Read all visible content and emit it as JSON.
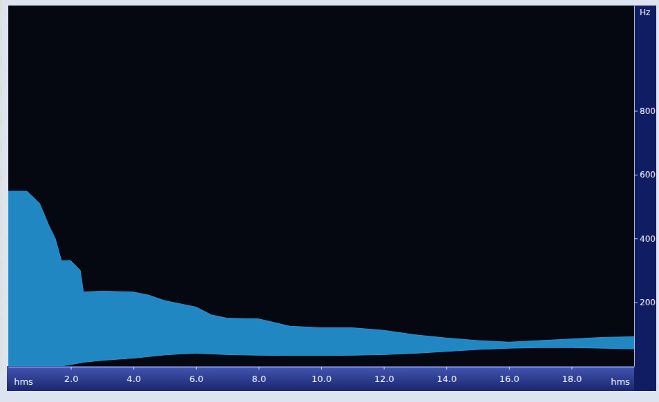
{
  "chart_data": {
    "type": "area",
    "x": [
      0,
      0.6,
      1.0,
      1.3,
      1.5,
      1.7,
      2.0,
      2.3,
      2.4,
      3.0,
      4.0,
      4.5,
      5.0,
      5.5,
      6.0,
      6.5,
      7.0,
      8.0,
      9.0,
      10.0,
      11.0,
      12.0,
      13.0,
      14.0,
      15.0,
      16.0,
      17.0,
      18.0,
      19.0,
      20.0
    ],
    "values": [
      548,
      548,
      510,
      440,
      400,
      330,
      330,
      300,
      232,
      235,
      232,
      222,
      205,
      195,
      185,
      160,
      150,
      148,
      125,
      120,
      120,
      112,
      98,
      88,
      80,
      75,
      80,
      85,
      90,
      92
    ],
    "lower": [
      0,
      0,
      0,
      0,
      0,
      0,
      5,
      10,
      12,
      18,
      25,
      30,
      35,
      38,
      40,
      38,
      36,
      34,
      33,
      33,
      34,
      36,
      40,
      46,
      52,
      56,
      58,
      58,
      56,
      54
    ],
    "color": "#2596d6",
    "xlim": [
      0,
      20
    ],
    "xticks": [
      {
        "value": 2,
        "label": "2.0"
      },
      {
        "value": 4,
        "label": "4.0"
      },
      {
        "value": 6,
        "label": "6.0"
      },
      {
        "value": 8,
        "label": "8.0"
      },
      {
        "value": 10,
        "label": "10.0"
      },
      {
        "value": 12,
        "label": "12.0"
      },
      {
        "value": 14,
        "label": "14.0"
      },
      {
        "value": 16,
        "label": "16.0"
      },
      {
        "value": 18,
        "label": "18.0"
      }
    ],
    "ylim": [
      0,
      1130
    ],
    "yticks": [
      200,
      400,
      600,
      800
    ],
    "x_label": "hms",
    "y_label": "Hz"
  }
}
